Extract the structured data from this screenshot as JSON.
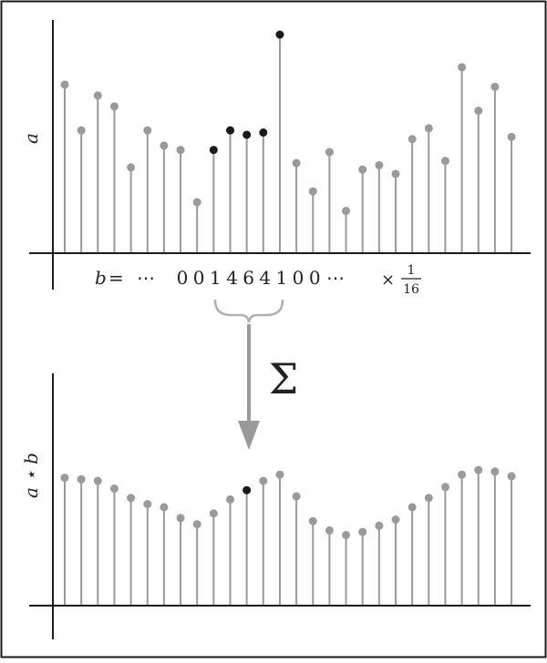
{
  "top_plot": {
    "ylabel": "a",
    "stems": [
      {
        "value": 0.77,
        "highlight": false
      },
      {
        "value": 0.56,
        "highlight": false
      },
      {
        "value": 0.72,
        "highlight": false
      },
      {
        "value": 0.67,
        "highlight": false
      },
      {
        "value": 0.39,
        "highlight": false
      },
      {
        "value": 0.56,
        "highlight": false
      },
      {
        "value": 0.49,
        "highlight": false
      },
      {
        "value": 0.47,
        "highlight": false
      },
      {
        "value": 0.23,
        "highlight": false
      },
      {
        "value": 0.47,
        "highlight": true
      },
      {
        "value": 0.56,
        "highlight": true
      },
      {
        "value": 0.54,
        "highlight": true
      },
      {
        "value": 0.55,
        "highlight": true
      },
      {
        "value": 1.0,
        "highlight": true
      },
      {
        "value": 0.41,
        "highlight": false
      },
      {
        "value": 0.28,
        "highlight": false
      },
      {
        "value": 0.46,
        "highlight": false
      },
      {
        "value": 0.19,
        "highlight": false
      },
      {
        "value": 0.38,
        "highlight": false
      },
      {
        "value": 0.4,
        "highlight": false
      },
      {
        "value": 0.36,
        "highlight": false
      },
      {
        "value": 0.52,
        "highlight": false
      },
      {
        "value": 0.57,
        "highlight": false
      },
      {
        "value": 0.42,
        "highlight": false
      },
      {
        "value": 0.85,
        "highlight": false
      },
      {
        "value": 0.65,
        "highlight": false
      },
      {
        "value": 0.76,
        "highlight": false
      },
      {
        "value": 0.53,
        "highlight": false
      }
    ]
  },
  "kernel": {
    "label_var": "b",
    "label_eq": "=",
    "ellipsis_left": "⋯",
    "digits": [
      "0",
      "0",
      "1",
      "4",
      "6",
      "4",
      "1",
      "0",
      "0"
    ],
    "ellipsis_right": "⋯",
    "times": "×",
    "frac_num": "1",
    "frac_den": "16"
  },
  "operator": {
    "symbol": "Σ",
    "arrow": "down-arrow"
  },
  "bottom_plot": {
    "ylabel": "a ⋆ b",
    "stems": [
      {
        "value": 0.82,
        "highlight": false
      },
      {
        "value": 0.81,
        "highlight": false
      },
      {
        "value": 0.8,
        "highlight": false
      },
      {
        "value": 0.75,
        "highlight": false
      },
      {
        "value": 0.69,
        "highlight": false
      },
      {
        "value": 0.65,
        "highlight": false
      },
      {
        "value": 0.63,
        "highlight": false
      },
      {
        "value": 0.56,
        "highlight": false
      },
      {
        "value": 0.52,
        "highlight": false
      },
      {
        "value": 0.59,
        "highlight": false
      },
      {
        "value": 0.68,
        "highlight": false
      },
      {
        "value": 0.74,
        "highlight": true
      },
      {
        "value": 0.8,
        "highlight": false
      },
      {
        "value": 0.84,
        "highlight": false
      },
      {
        "value": 0.7,
        "highlight": false
      },
      {
        "value": 0.54,
        "highlight": false
      },
      {
        "value": 0.48,
        "highlight": false
      },
      {
        "value": 0.45,
        "highlight": false
      },
      {
        "value": 0.47,
        "highlight": false
      },
      {
        "value": 0.51,
        "highlight": false
      },
      {
        "value": 0.55,
        "highlight": false
      },
      {
        "value": 0.63,
        "highlight": false
      },
      {
        "value": 0.69,
        "highlight": false
      },
      {
        "value": 0.76,
        "highlight": false
      },
      {
        "value": 0.84,
        "highlight": false
      },
      {
        "value": 0.87,
        "highlight": false
      },
      {
        "value": 0.86,
        "highlight": false
      },
      {
        "value": 0.83,
        "highlight": false
      }
    ]
  },
  "colors": {
    "stem": "#9a9a9a",
    "highlight": "#1a1a1a",
    "axis": "#1a1a1a",
    "frame": "#1a1a1a",
    "arrow": "#9a9a9a"
  }
}
